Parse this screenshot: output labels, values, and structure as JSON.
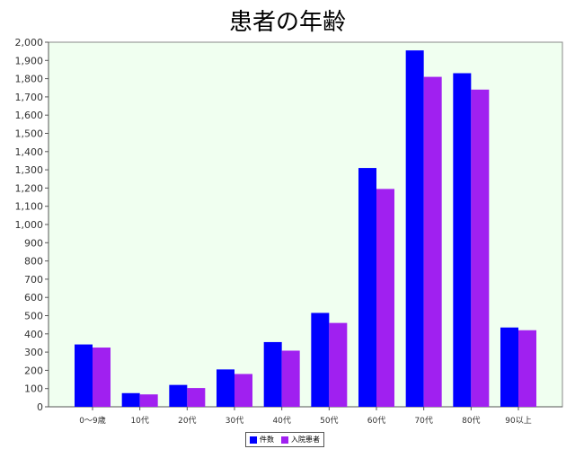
{
  "chart_data": {
    "type": "bar",
    "title": "患者の年齢",
    "xlabel": "",
    "ylabel": "",
    "categories": [
      "0〜9歳",
      "10代",
      "20代",
      "30代",
      "40代",
      "50代",
      "60代",
      "70代",
      "80代",
      "90以上"
    ],
    "series": [
      {
        "name": "件数",
        "color": "#0000ff",
        "values": [
          342,
          75,
          120,
          205,
          355,
          515,
          1310,
          1955,
          1830,
          435
        ]
      },
      {
        "name": "入院患者",
        "color": "#a020f0",
        "values": [
          325,
          68,
          103,
          180,
          308,
          460,
          1195,
          1810,
          1740,
          420
        ]
      }
    ],
    "ylim": [
      0,
      2000
    ],
    "yticks": [
      0,
      100,
      200,
      300,
      400,
      500,
      600,
      700,
      800,
      900,
      1000,
      1100,
      1200,
      1300,
      1400,
      1500,
      1600,
      1700,
      1800,
      1900,
      2000
    ],
    "ytick_labels": [
      "0",
      "100",
      "200",
      "300",
      "400",
      "500",
      "600",
      "700",
      "800",
      "900",
      "1,000",
      "1,100",
      "1,200",
      "1,300",
      "1,400",
      "1,500",
      "1,600",
      "1,700",
      "1,800",
      "1,900",
      "2,000"
    ],
    "grid": false,
    "legend": "bottom",
    "plot_background": "#f0fff0"
  }
}
